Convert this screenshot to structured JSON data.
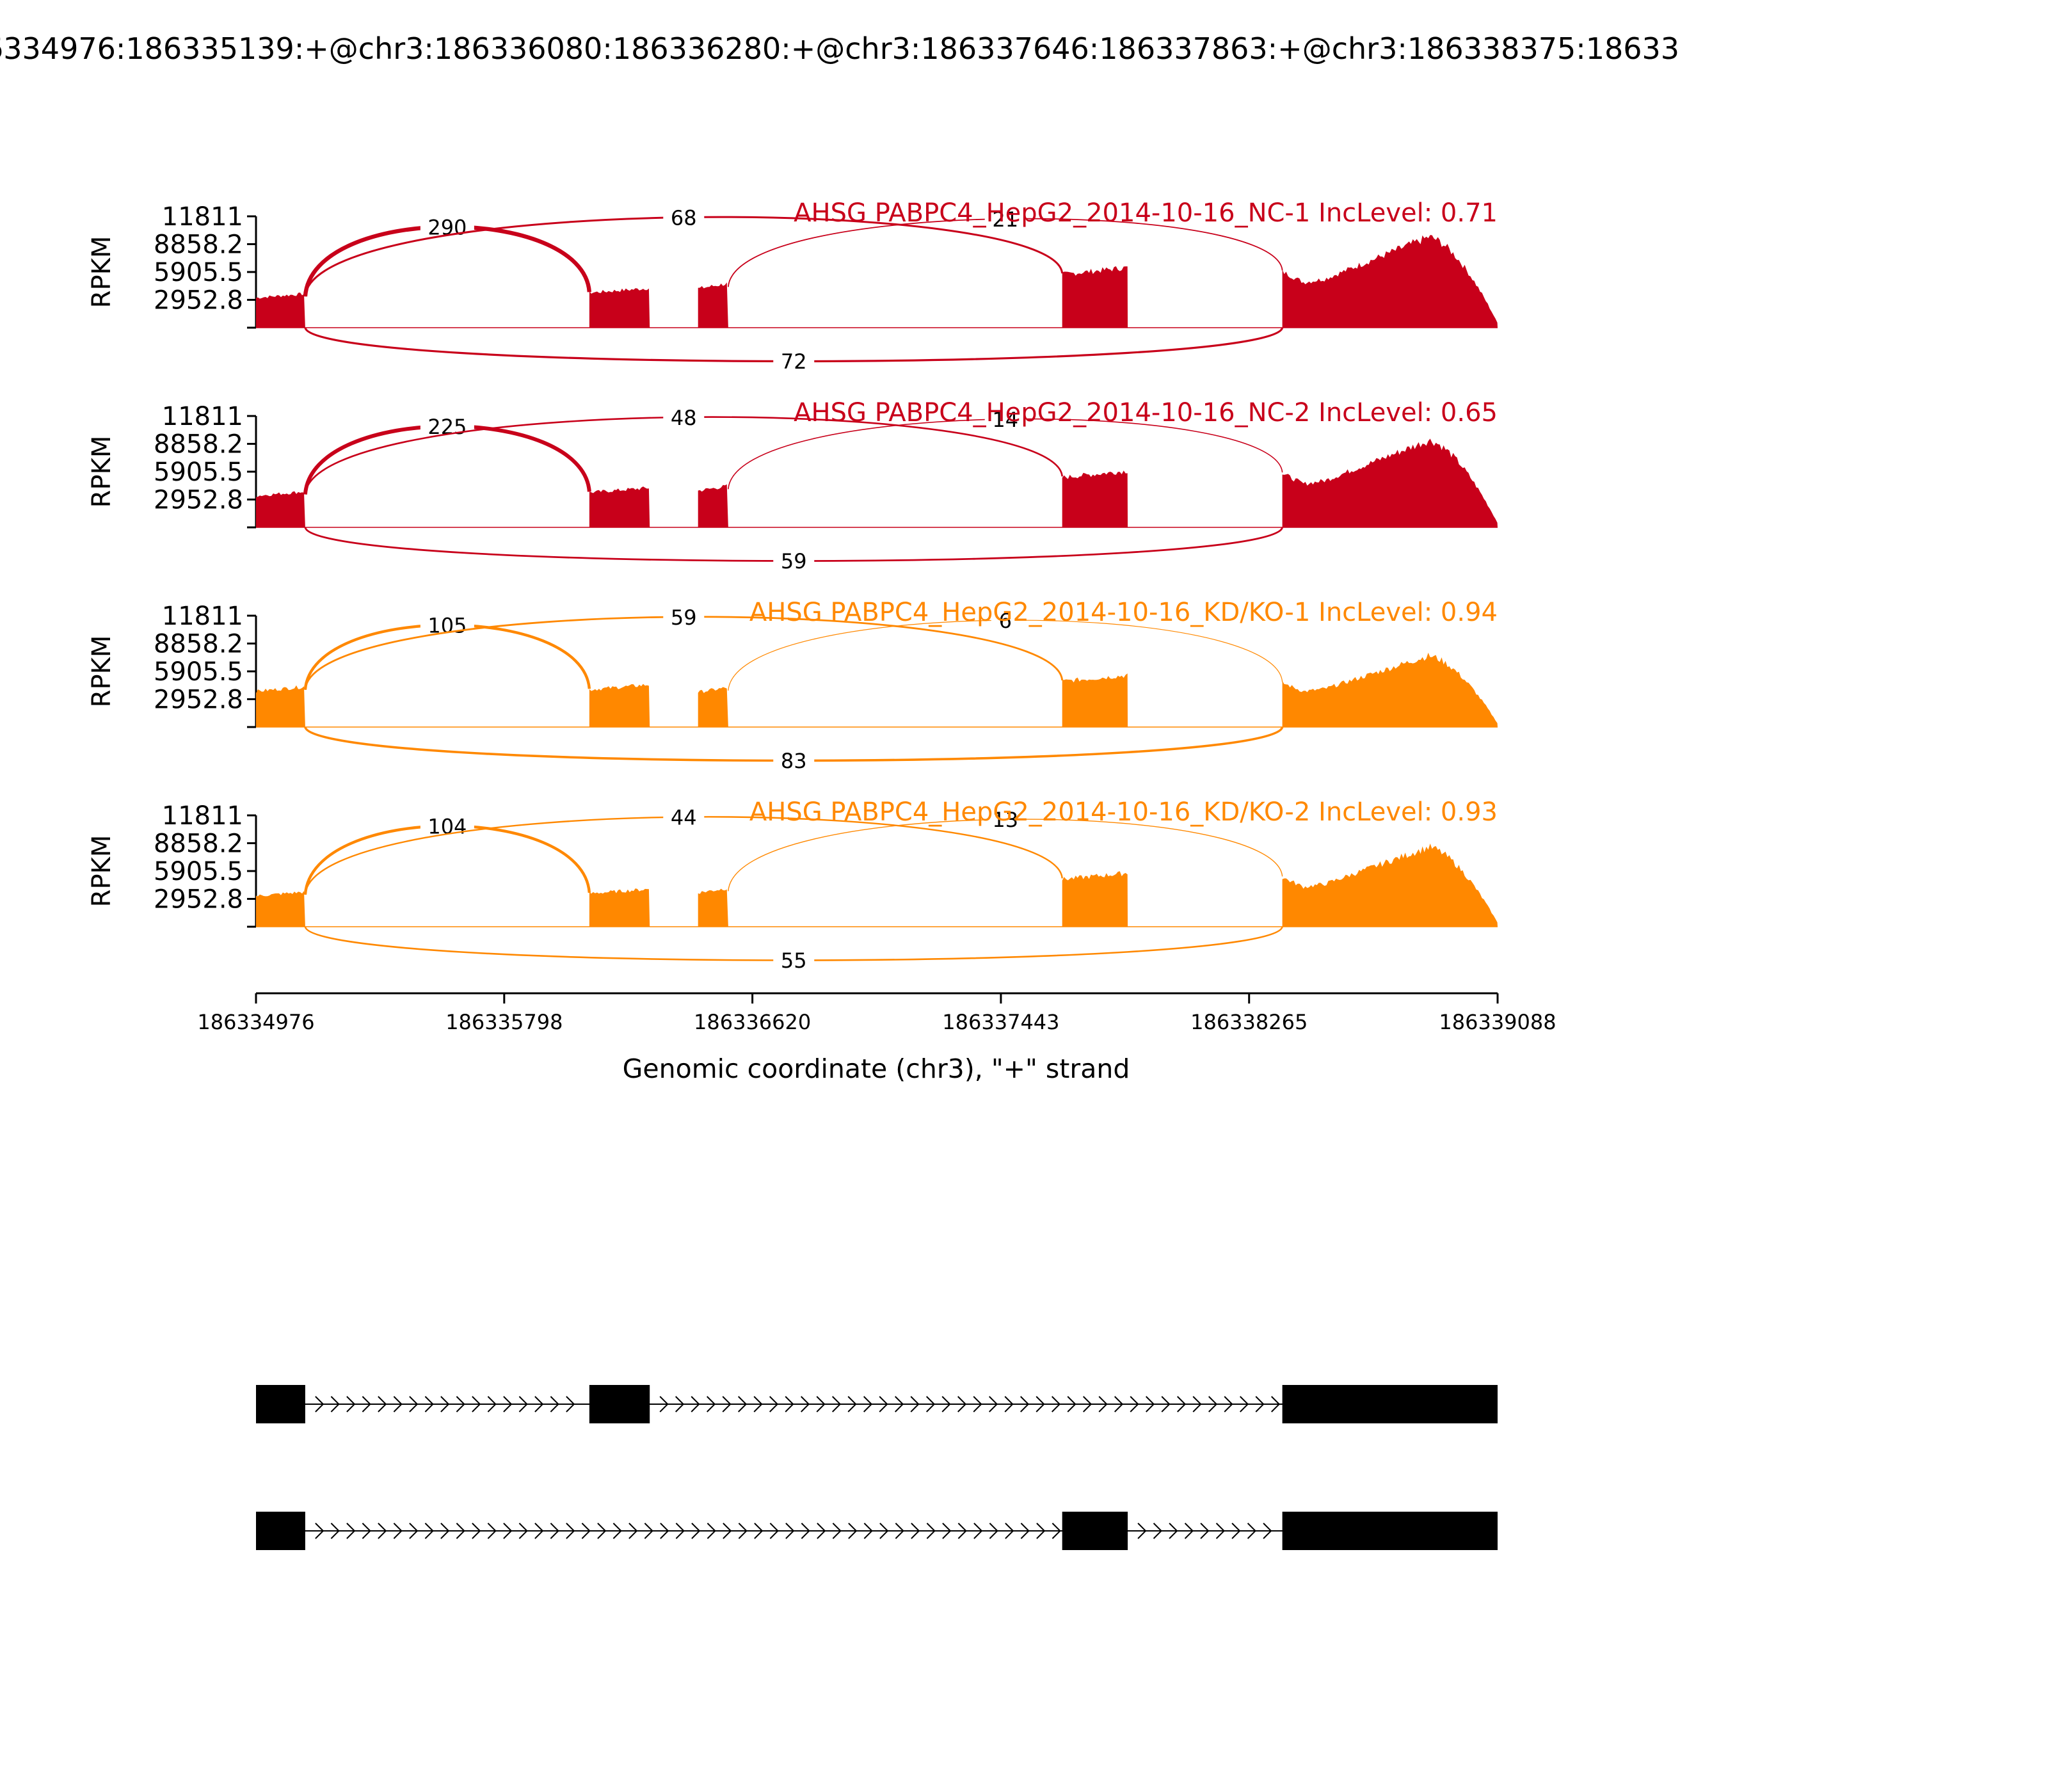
{
  "chart_data": {
    "type": "sashimi",
    "title": "6334976:186335139:+@chr3:186336080:186336280:+@chr3:186337646:186337863:+@chr3:186338375:18633",
    "xlabel": "Genomic coordinate (chr3), \"+\" strand",
    "ylabel": "RPKM",
    "xlim": [
      186334976,
      186339088
    ],
    "xticks": [
      "186334976",
      "186335798",
      "186336620",
      "186337443",
      "186338265",
      "186339088"
    ],
    "ylim": [
      0,
      11811
    ],
    "yticks": [
      "11811",
      "8858.2",
      "5905.5",
      "2952.8"
    ],
    "colors": {
      "NC": "#c8001a",
      "KD": "#ff8800",
      "structure": "#000000"
    },
    "exons": [
      {
        "start": 186334976,
        "end": 186335139
      },
      {
        "start": 186336080,
        "end": 186336280
      },
      {
        "start": 186336440,
        "end": 186336540
      },
      {
        "start": 186337646,
        "end": 186337863
      },
      {
        "start": 186338375,
        "end": 186339088
      }
    ],
    "samples": [
      {
        "label": "AHSG PABPC4_HepG2_2014-10-16_NC-1 IncLevel: 0.71",
        "group": "NC",
        "levels": [
          3600,
          4200,
          4700,
          6400,
          9800
        ],
        "junctions": [
          {
            "count": "290",
            "from": 186335139,
            "to": 186336080,
            "side": "above",
            "weight": 3.2
          },
          {
            "count": "68",
            "from": 186335139,
            "to": 186337646,
            "side": "above",
            "weight": 1.5
          },
          {
            "count": "21",
            "from": 186336540,
            "to": 186338375,
            "side": "above",
            "weight": 0.9
          },
          {
            "count": "72",
            "from": 186335139,
            "to": 186338375,
            "side": "below",
            "weight": 1.6
          }
        ]
      },
      {
        "label": "AHSG PABPC4_HepG2_2014-10-16_NC-2 IncLevel: 0.65",
        "group": "NC",
        "levels": [
          3800,
          4200,
          4400,
          6000,
          9400
        ],
        "junctions": [
          {
            "count": "225",
            "from": 186335139,
            "to": 186336080,
            "side": "above",
            "weight": 3.0
          },
          {
            "count": "48",
            "from": 186335139,
            "to": 186337646,
            "side": "above",
            "weight": 1.3
          },
          {
            "count": "14",
            "from": 186336540,
            "to": 186338375,
            "side": "above",
            "weight": 0.8
          },
          {
            "count": "59",
            "from": 186335139,
            "to": 186338375,
            "side": "below",
            "weight": 1.4
          }
        ]
      },
      {
        "label": "AHSG PABPC4_HepG2_2014-10-16_KD/KO-1 IncLevel: 0.94",
        "group": "KD",
        "levels": [
          4300,
          4500,
          4200,
          5500,
          7700
        ],
        "junctions": [
          {
            "count": "105",
            "from": 186335139,
            "to": 186336080,
            "side": "above",
            "weight": 2.2
          },
          {
            "count": "59",
            "from": 186335139,
            "to": 186337646,
            "side": "above",
            "weight": 1.4
          },
          {
            "count": "6",
            "from": 186336540,
            "to": 186338375,
            "side": "above",
            "weight": 0.6
          },
          {
            "count": "83",
            "from": 186335139,
            "to": 186338375,
            "side": "below",
            "weight": 1.8
          }
        ]
      },
      {
        "label": "AHSG PABPC4_HepG2_2014-10-16_KD/KO-2 IncLevel: 0.93",
        "group": "KD",
        "levels": [
          3700,
          4000,
          4100,
          5700,
          8600
        ],
        "junctions": [
          {
            "count": "104",
            "from": 186335139,
            "to": 186336080,
            "side": "above",
            "weight": 2.2
          },
          {
            "count": "44",
            "from": 186335139,
            "to": 186337646,
            "side": "above",
            "weight": 1.2
          },
          {
            "count": "13",
            "from": 186336540,
            "to": 186338375,
            "side": "above",
            "weight": 0.7
          },
          {
            "count": "55",
            "from": 186335139,
            "to": 186338375,
            "side": "below",
            "weight": 1.3
          }
        ]
      }
    ],
    "isoforms": [
      {
        "exons": [
          [
            186334976,
            186335139
          ],
          [
            186336080,
            186336280
          ],
          [
            186338375,
            186339088
          ]
        ]
      },
      {
        "exons": [
          [
            186334976,
            186335139
          ],
          [
            186337646,
            186337863
          ],
          [
            186338375,
            186339088
          ]
        ]
      }
    ]
  }
}
